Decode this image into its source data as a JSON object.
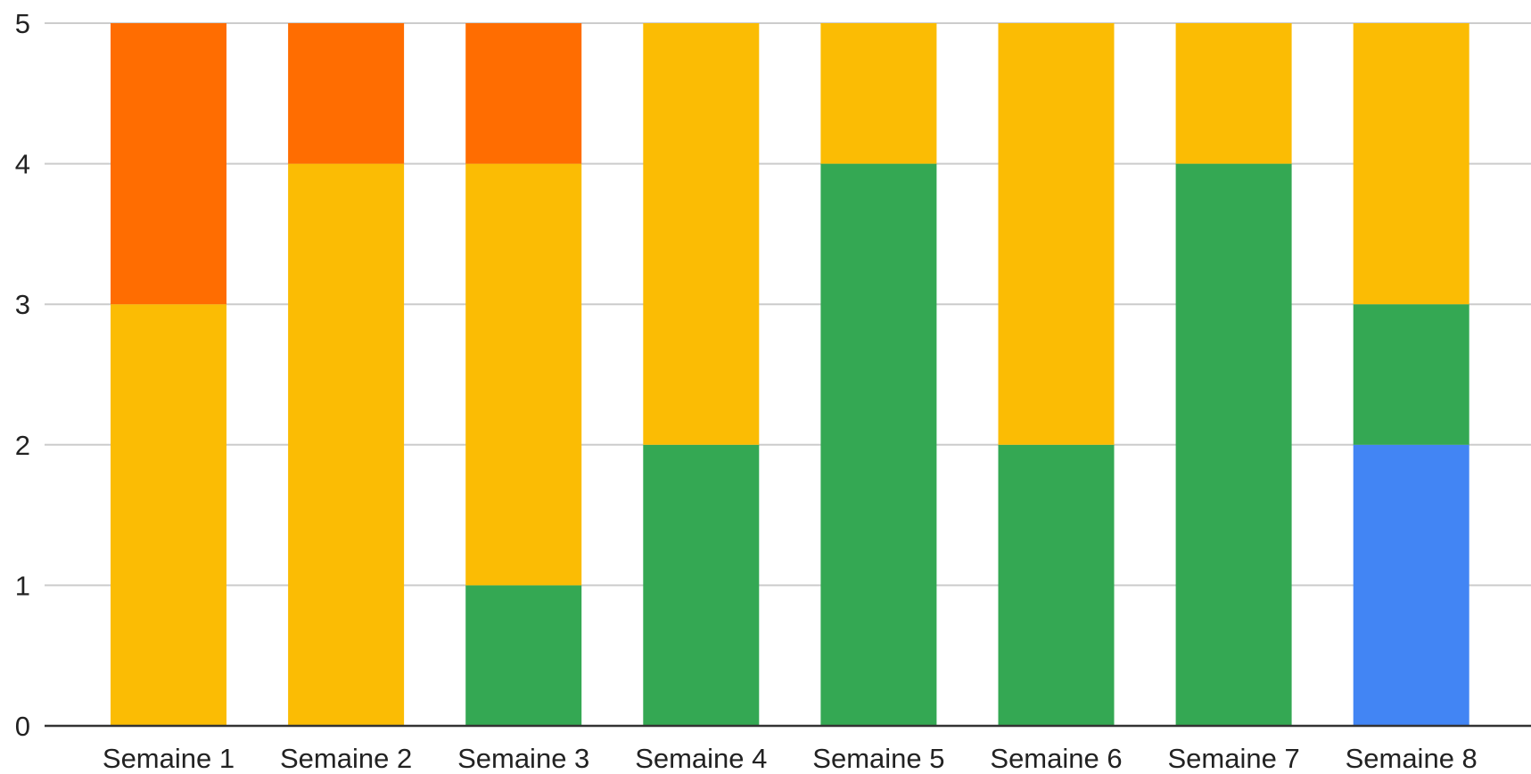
{
  "chart_data": {
    "type": "bar",
    "stacked": true,
    "title": "",
    "xlabel": "",
    "ylabel": "",
    "ylim": [
      0,
      5
    ],
    "yticks": [
      0,
      1,
      2,
      3,
      4,
      5
    ],
    "grid": true,
    "legend": "none",
    "categories": [
      "Semaine 1",
      "Semaine 2",
      "Semaine 3",
      "Semaine 4",
      "Semaine 5",
      "Semaine 6",
      "Semaine 7",
      "Semaine 8"
    ],
    "series": [
      {
        "color": "#4285F4",
        "values": [
          0,
          0,
          0,
          0,
          0,
          0,
          0,
          2
        ]
      },
      {
        "color": "#34A853",
        "values": [
          0,
          0,
          1,
          2,
          4,
          2,
          4,
          1
        ]
      },
      {
        "color": "#FBBC04",
        "values": [
          3,
          4,
          3,
          3,
          1,
          3,
          1,
          2
        ]
      },
      {
        "color": "#FF6D01",
        "values": [
          2,
          1,
          1,
          0,
          0,
          0,
          0,
          0
        ]
      }
    ]
  }
}
